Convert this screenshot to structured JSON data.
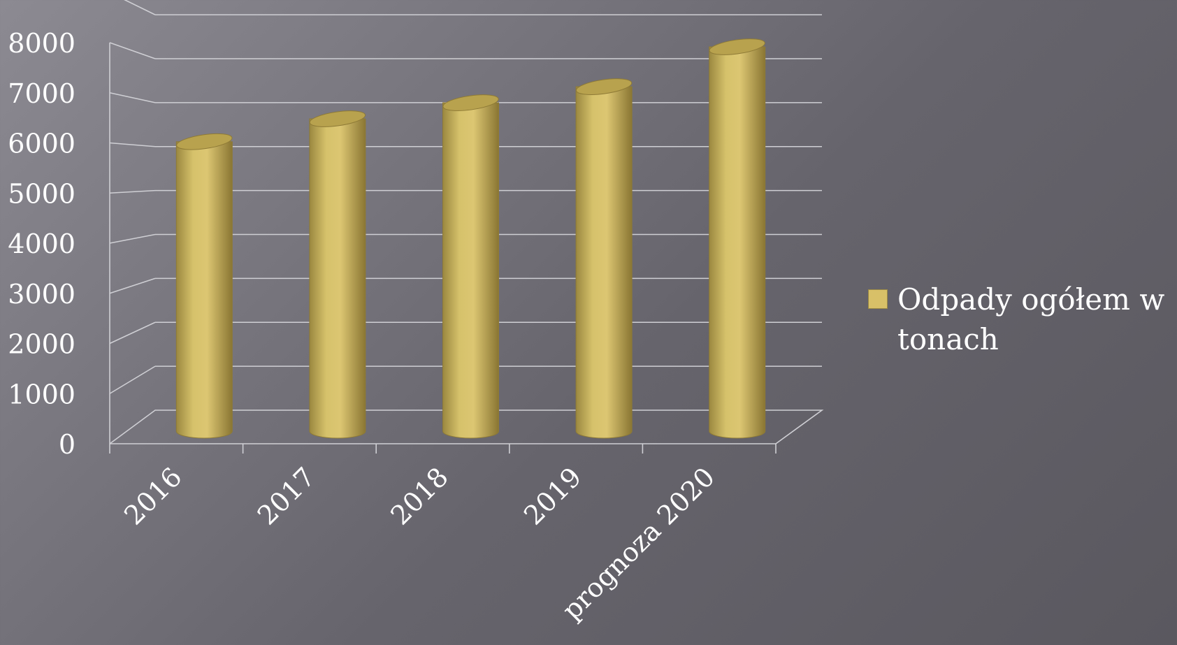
{
  "chart_data": {
    "type": "bar",
    "style": "3d-cylinder",
    "categories": [
      "2016",
      "2017",
      "2018",
      "2019",
      "prognoza 2020"
    ],
    "series": [
      {
        "name": "Odpady ogółem w tonach",
        "values": [
          5950,
          6420,
          6750,
          7080,
          7900
        ]
      }
    ],
    "ylim": [
      0,
      8000
    ],
    "yticks": [
      0,
      1000,
      2000,
      3000,
      4000,
      5000,
      6000,
      7000,
      8000
    ],
    "grid": true,
    "legend_position": "right",
    "title": "",
    "xlabel": "",
    "ylabel": ""
  },
  "colors": {
    "bar": "#d8c068",
    "bar_shadow": "#8e7a36",
    "bar_top": "#b8a24e",
    "grid": "#cfcfd4",
    "text": "#ffffff"
  }
}
